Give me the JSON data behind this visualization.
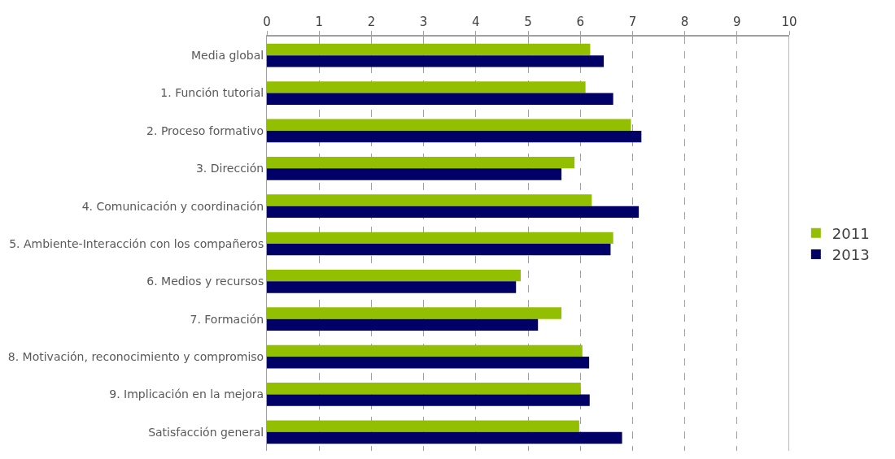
{
  "chart_data": {
    "type": "bar",
    "orientation": "horizontal",
    "categories": [
      "Media global",
      "1. Función tutorial",
      "2. Proceso formativo",
      "3. Dirección",
      "4. Comunicación y coordinación",
      "5. Ambiente-Interacción con los compañeros",
      "6. Medios y recursos",
      "7. Formación",
      "8. Motivación, reconocimiento y compromiso",
      "9. Implicación en la mejora",
      "Satisfacción general"
    ],
    "series": [
      {
        "name": "2011",
        "color": "#92bf00",
        "values": [
          6.19,
          6.1,
          6.97,
          5.89,
          6.22,
          6.63,
          4.86,
          5.64,
          6.04,
          6.01,
          5.98
        ]
      },
      {
        "name": "2013",
        "color": "#000066",
        "values": [
          6.45,
          6.63,
          7.17,
          5.64,
          7.12,
          6.58,
          4.77,
          5.19,
          6.17,
          6.18,
          6.8
        ]
      }
    ],
    "xlim": [
      0,
      10
    ],
    "xticks": [
      0,
      1,
      2,
      3,
      4,
      5,
      6,
      7,
      8,
      9,
      10
    ],
    "grid": "x",
    "legend": "right"
  }
}
